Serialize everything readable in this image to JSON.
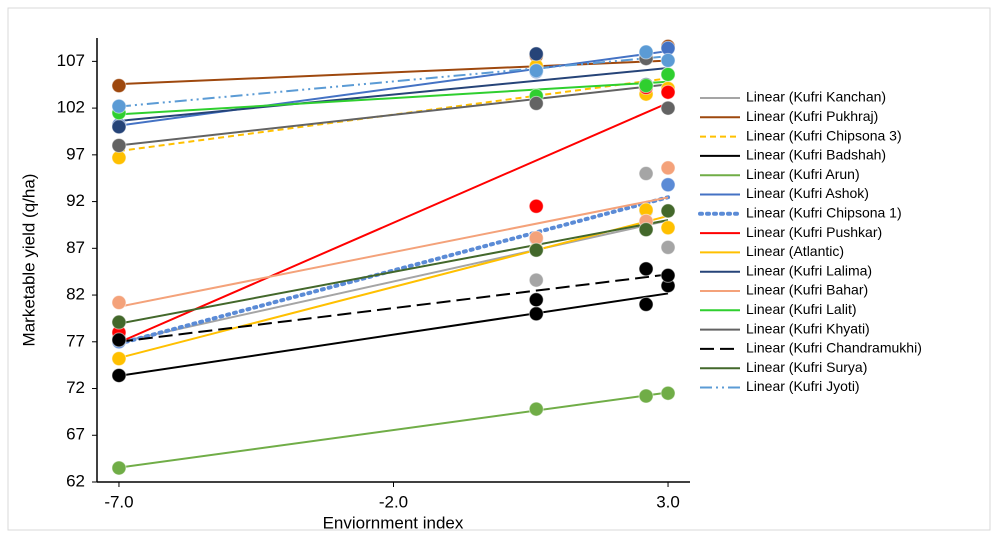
{
  "chart_data": {
    "type": "scatter-trend",
    "x_label": "Enviornment  index",
    "y_label": "Marketable  yield (q/ha)",
    "x": [
      -7.0,
      0.6,
      2.6,
      3.0
    ],
    "xlim": [
      -7.4,
      3.4
    ],
    "xticks": [
      {
        "value": -7,
        "label": "-7.0"
      },
      {
        "value": -2,
        "label": "-2.0"
      },
      {
        "value": 3,
        "label": "3.0"
      }
    ],
    "ylim": [
      62,
      109.5
    ],
    "yticks": [
      62,
      67,
      72,
      77,
      82,
      87,
      92,
      97,
      102,
      107
    ],
    "legend": "right",
    "series": [
      {
        "name": "Linear (Kufri Kanchan)",
        "color": "#a5a5a5",
        "dash": "solid",
        "values": [
          77.5,
          83.6,
          95.0,
          87.1
        ]
      },
      {
        "name": "Linear (Kufri Pukhraj)",
        "color": "#9e480e",
        "dash": "solid",
        "values": [
          104.4,
          107.6,
          104.5,
          108.6
        ]
      },
      {
        "name": "Linear (Kufri Chipsona 3)",
        "color": "#ffc000",
        "dash": "dashed",
        "values": [
          96.7,
          106.5,
          103.5,
          104.1
        ]
      },
      {
        "name": "Linear (Kufri Badshah)",
        "color": "#000000",
        "dash": "solid",
        "values": [
          73.4,
          80.0,
          81.0,
          83.0
        ]
      },
      {
        "name": "Linear (Kufri Arun)",
        "color": "#70ad47",
        "dash": "solid",
        "values": [
          63.5,
          69.8,
          71.2,
          71.5
        ]
      },
      {
        "name": "Linear (Kufri Ashok)",
        "color": "#4472c4",
        "dash": "solid",
        "values": [
          100.2,
          105.9,
          107.7,
          108.4
        ]
      },
      {
        "name": "Linear (Kufri Chipsona 1)",
        "color": "#5b8bd6",
        "dash": "dotted",
        "values": [
          77.0,
          88.0,
          91.0,
          93.8
        ]
      },
      {
        "name": "Linear (Kufri Pushkar)",
        "color": "#ff0000",
        "dash": "solid",
        "values": [
          78.0,
          91.5,
          104.2,
          103.7
        ]
      },
      {
        "name": "Linear (Atlantic)",
        "color": "#ffc000",
        "dash": "solid",
        "values": [
          75.2,
          86.9,
          91.1,
          89.2
        ]
      },
      {
        "name": "Linear (Kufri Lalima)",
        "color": "#264478",
        "dash": "solid",
        "values": [
          100.0,
          107.8,
          104.5,
          105.6
        ]
      },
      {
        "name": "Linear (Kufri Bahar)",
        "color": "#f4a27a",
        "dash": "solid",
        "values": [
          81.2,
          88.1,
          89.9,
          95.6
        ]
      },
      {
        "name": "Linear (Kufri Lalit)",
        "color": "#2fcf2f",
        "dash": "solid",
        "values": [
          101.5,
          103.3,
          104.4,
          105.6
        ]
      },
      {
        "name": "Linear (Kufri Khyati)",
        "color": "#636363",
        "dash": "solid",
        "values": [
          98.0,
          102.5,
          107.3,
          102.0
        ]
      },
      {
        "name": "Linear (Kufri Chandramukhi)",
        "color": "#000000",
        "dash": "longdash",
        "values": [
          77.2,
          81.5,
          84.8,
          84.1
        ]
      },
      {
        "name": "Linear (Kufri Surya)",
        "color": "#43682b",
        "dash": "solid",
        "values": [
          79.1,
          86.8,
          89.0,
          91.0
        ]
      },
      {
        "name": "Linear (Kufri Jyoti)",
        "color": "#5b9bd5",
        "dash": "dashdot",
        "values": [
          102.2,
          106.0,
          108.0,
          107.1
        ]
      }
    ]
  }
}
